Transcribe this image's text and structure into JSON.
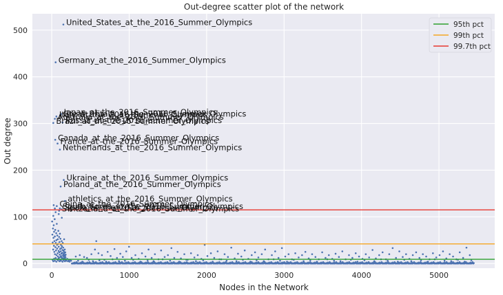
{
  "chart_data": {
    "type": "scatter",
    "title": "Out-degree scatter plot of the network",
    "xlabel": "Nodes in the Network",
    "ylabel": "Out degree",
    "xlim": [
      -250,
      5720
    ],
    "ylim": [
      -10,
      535
    ],
    "xticks": [
      0,
      1000,
      2000,
      3000,
      4000,
      5000
    ],
    "yticks": [
      0,
      100,
      200,
      300,
      400,
      500
    ],
    "grid": true,
    "legend_position": "top-right",
    "point_color": "#4c72b0",
    "reference_lines": [
      {
        "name": "95th pct",
        "y": 9,
        "color": "#2ca02c"
      },
      {
        "name": "99th pct",
        "y": 42,
        "color": "#f5a623"
      },
      {
        "name": "99.7th pct",
        "y": 115,
        "color": "#e8362e"
      }
    ],
    "labeled_points": [
      {
        "label": "United_States_at_the_2016_Summer_Olympics",
        "x": 150,
        "y": 512
      },
      {
        "label": "Germany_at_the_2016_Summer_Olympics",
        "x": 50,
        "y": 431
      },
      {
        "label": "Japan_at_the_2016_Summer_Olympics",
        "x": 120,
        "y": 320
      },
      {
        "label": "Great_Britain_at_the_2016_Summer_Olympics",
        "x": 110,
        "y": 316
      },
      {
        "label": "Italy_at_the_2016_Summer_Olympics",
        "x": 60,
        "y": 315
      },
      {
        "label": "Australia_at_the_2016_Summer_Olympics",
        "x": 40,
        "y": 310
      },
      {
        "label": "Russia_at_the_2016_Summer_Olympics",
        "x": 140,
        "y": 302
      },
      {
        "label": "Brazil_at_the_2016_Summer_Olympics",
        "x": 20,
        "y": 301
      },
      {
        "label": "Canada_at_the_2016_Summer_Olympics",
        "x": 45,
        "y": 265
      },
      {
        "label": "France_at_the_2016_Summer_Olympics",
        "x": 75,
        "y": 257
      },
      {
        "label": "Netherlands_at_the_2016_Summer_Olympics",
        "x": 105,
        "y": 244
      },
      {
        "label": "Ukraine_at_the_2016_Summer_Olympics",
        "x": 155,
        "y": 179
      },
      {
        "label": "Poland_at_the_2016_Summer_Olympics",
        "x": 115,
        "y": 165
      },
      {
        "label": "athletics_at_the_2016_Summer_Olympics",
        "x": 170,
        "y": 134
      },
      {
        "label": "China_at_the_2016_Summer_Olympics",
        "x": 65,
        "y": 123
      },
      {
        "label": "South_Korea_at_the_2016_Summer_Olympics",
        "x": 105,
        "y": 118
      },
      {
        "label": "Spain_at_the_2016_Summer_Olympics",
        "x": 130,
        "y": 116
      },
      {
        "label": "Switzerland_at_the_2016_Summer_Olympics",
        "x": 95,
        "y": 113
      }
    ],
    "points": [
      [
        5,
        90
      ],
      [
        8,
        62
      ],
      [
        12,
        45
      ],
      [
        15,
        75
      ],
      [
        18,
        30
      ],
      [
        20,
        102
      ],
      [
        22,
        55
      ],
      [
        25,
        82
      ],
      [
        28,
        38
      ],
      [
        30,
        68
      ],
      [
        33,
        25
      ],
      [
        35,
        48
      ],
      [
        38,
        95
      ],
      [
        40,
        58
      ],
      [
        42,
        20
      ],
      [
        45,
        72
      ],
      [
        48,
        35
      ],
      [
        50,
        110
      ],
      [
        52,
        44
      ],
      [
        55,
        28
      ],
      [
        58,
        65
      ],
      [
        60,
        50
      ],
      [
        62,
        18
      ],
      [
        65,
        85
      ],
      [
        68,
        40
      ],
      [
        70,
        32
      ],
      [
        72,
        60
      ],
      [
        75,
        22
      ],
      [
        78,
        52
      ],
      [
        80,
        15
      ],
      [
        82,
        42
      ],
      [
        85,
        70
      ],
      [
        88,
        27
      ],
      [
        90,
        36
      ],
      [
        92,
        12
      ],
      [
        95,
        57
      ],
      [
        98,
        24
      ],
      [
        100,
        46
      ],
      [
        102,
        19
      ],
      [
        105,
        64
      ],
      [
        108,
        31
      ],
      [
        110,
        14
      ],
      [
        112,
        53
      ],
      [
        115,
        26
      ],
      [
        118,
        40
      ],
      [
        120,
        16
      ],
      [
        122,
        33
      ],
      [
        125,
        21
      ],
      [
        128,
        48
      ],
      [
        130,
        13
      ],
      [
        132,
        37
      ],
      [
        135,
        23
      ],
      [
        138,
        29
      ],
      [
        140,
        11
      ],
      [
        142,
        44
      ],
      [
        145,
        17
      ],
      [
        148,
        34
      ],
      [
        150,
        20
      ],
      [
        152,
        28
      ],
      [
        155,
        15
      ],
      [
        158,
        25
      ],
      [
        160,
        12
      ],
      [
        162,
        22
      ],
      [
        165,
        18
      ],
      [
        168,
        30
      ],
      [
        170,
        10
      ],
      [
        172,
        16
      ],
      [
        175,
        24
      ],
      [
        178,
        13
      ],
      [
        180,
        19
      ],
      [
        10,
        8
      ],
      [
        20,
        5
      ],
      [
        30,
        10
      ],
      [
        40,
        6
      ],
      [
        50,
        12
      ],
      [
        60,
        4
      ],
      [
        70,
        9
      ],
      [
        80,
        7
      ],
      [
        90,
        11
      ],
      [
        100,
        5
      ],
      [
        110,
        8
      ],
      [
        120,
        6
      ],
      [
        130,
        10
      ],
      [
        140,
        4
      ],
      [
        150,
        7
      ],
      [
        160,
        9
      ],
      [
        170,
        5
      ],
      [
        180,
        8
      ],
      [
        190,
        6
      ],
      [
        200,
        10
      ],
      [
        210,
        5
      ],
      [
        220,
        7
      ],
      [
        230,
        4
      ],
      [
        240,
        8
      ],
      [
        250,
        6
      ],
      [
        40,
        118
      ],
      [
        90,
        106
      ],
      [
        130,
        98
      ],
      [
        25,
        125
      ],
      [
        160,
        52
      ],
      [
        310,
        15
      ],
      [
        362,
        18
      ],
      [
        418,
        14
      ],
      [
        455,
        12
      ],
      [
        512,
        20
      ],
      [
        558,
        30
      ],
      [
        575,
        48
      ],
      [
        603,
        22
      ],
      [
        648,
        18
      ],
      [
        680,
        8
      ],
      [
        722,
        25
      ],
      [
        760,
        16
      ],
      [
        810,
        31
      ],
      [
        842,
        12
      ],
      [
        885,
        21
      ],
      [
        918,
        14
      ],
      [
        962,
        26
      ],
      [
        998,
        36
      ],
      [
        1032,
        12
      ],
      [
        1080,
        18
      ],
      [
        1122,
        10
      ],
      [
        1165,
        22
      ],
      [
        1210,
        15
      ],
      [
        1250,
        30
      ],
      [
        1290,
        12
      ],
      [
        1332,
        20
      ],
      [
        1378,
        9
      ],
      [
        1412,
        28
      ],
      [
        1458,
        14
      ],
      [
        1500,
        18
      ],
      [
        1545,
        33
      ],
      [
        1582,
        12
      ],
      [
        1625,
        25
      ],
      [
        1668,
        11
      ],
      [
        1712,
        20
      ],
      [
        1755,
        8
      ],
      [
        1798,
        22
      ],
      [
        1842,
        13
      ],
      [
        1885,
        18
      ],
      [
        1932,
        10
      ],
      [
        1975,
        40
      ],
      [
        2010,
        16
      ],
      [
        2055,
        22
      ],
      [
        2098,
        12
      ],
      [
        2142,
        26
      ],
      [
        2188,
        9
      ],
      [
        2232,
        20
      ],
      [
        2275,
        14
      ],
      [
        2318,
        34
      ],
      [
        2362,
        11
      ],
      [
        2405,
        21
      ],
      [
        2448,
        15
      ],
      [
        2492,
        28
      ],
      [
        2538,
        10
      ],
      [
        2582,
        18
      ],
      [
        2625,
        24
      ],
      [
        2668,
        13
      ],
      [
        2712,
        20
      ],
      [
        2755,
        30
      ],
      [
        2798,
        9
      ],
      [
        2842,
        18
      ],
      [
        2885,
        26
      ],
      [
        2928,
        12
      ],
      [
        2972,
        33
      ],
      [
        3015,
        15
      ],
      [
        3058,
        20
      ],
      [
        3102,
        9
      ],
      [
        3145,
        22
      ],
      [
        3188,
        13
      ],
      [
        3232,
        18
      ],
      [
        3275,
        25
      ],
      [
        3318,
        11
      ],
      [
        3362,
        20
      ],
      [
        3405,
        14
      ],
      [
        3448,
        9
      ],
      [
        3492,
        24
      ],
      [
        3535,
        12
      ],
      [
        3578,
        18
      ],
      [
        3622,
        10
      ],
      [
        3665,
        21
      ],
      [
        3708,
        14
      ],
      [
        3752,
        26
      ],
      [
        3795,
        9
      ],
      [
        3838,
        18
      ],
      [
        3882,
        12
      ],
      [
        3925,
        22
      ],
      [
        3968,
        15
      ],
      [
        4012,
        10
      ],
      [
        4055,
        20
      ],
      [
        4098,
        13
      ],
      [
        4142,
        29
      ],
      [
        4185,
        11
      ],
      [
        4228,
        18
      ],
      [
        4272,
        24
      ],
      [
        4315,
        9
      ],
      [
        4358,
        20
      ],
      [
        4402,
        33
      ],
      [
        4445,
        12
      ],
      [
        4488,
        26
      ],
      [
        4532,
        14
      ],
      [
        4575,
        20
      ],
      [
        4618,
        10
      ],
      [
        4662,
        18
      ],
      [
        4705,
        24
      ],
      [
        4748,
        12
      ],
      [
        4792,
        20
      ],
      [
        4835,
        15
      ],
      [
        4878,
        9
      ],
      [
        4922,
        22
      ],
      [
        4965,
        13
      ],
      [
        5008,
        18
      ],
      [
        5052,
        26
      ],
      [
        5095,
        11
      ],
      [
        5138,
        20
      ],
      [
        5182,
        15
      ],
      [
        5225,
        9
      ],
      [
        5268,
        24
      ],
      [
        5312,
        12
      ],
      [
        5355,
        34
      ],
      [
        5398,
        18
      ],
      [
        340,
        6
      ],
      [
        395,
        4
      ],
      [
        478,
        8
      ],
      [
        532,
        5
      ],
      [
        615,
        7
      ],
      [
        702,
        4
      ],
      [
        785,
        9
      ],
      [
        868,
        5
      ],
      [
        945,
        6
      ],
      [
        1052,
        8
      ],
      [
        1145,
        4
      ],
      [
        1238,
        7
      ],
      [
        1315,
        5
      ],
      [
        1432,
        9
      ],
      [
        1528,
        6
      ],
      [
        1645,
        4
      ],
      [
        1738,
        8
      ],
      [
        1862,
        5
      ],
      [
        1955,
        7
      ],
      [
        2078,
        4
      ],
      [
        2165,
        9
      ],
      [
        2258,
        6
      ],
      [
        2385,
        5
      ],
      [
        2468,
        8
      ],
      [
        2565,
        4
      ],
      [
        2645,
        7
      ],
      [
        2738,
        5
      ],
      [
        2865,
        9
      ],
      [
        2948,
        6
      ],
      [
        3038,
        4
      ],
      [
        3125,
        8
      ],
      [
        3252,
        5
      ],
      [
        3338,
        7
      ],
      [
        3425,
        4
      ],
      [
        3558,
        9
      ],
      [
        3645,
        6
      ],
      [
        3728,
        5
      ],
      [
        3862,
        8
      ],
      [
        3948,
        4
      ],
      [
        4038,
        7
      ],
      [
        4165,
        5
      ],
      [
        4252,
        9
      ],
      [
        4338,
        6
      ],
      [
        4468,
        4
      ],
      [
        4552,
        8
      ],
      [
        4642,
        5
      ],
      [
        4768,
        7
      ],
      [
        4858,
        4
      ],
      [
        4945,
        9
      ],
      [
        5072,
        6
      ],
      [
        5158,
        5
      ],
      [
        5245,
        8
      ],
      [
        5332,
        4
      ],
      [
        5418,
        7
      ]
    ],
    "baseline_points": {
      "x_start": 260,
      "x_end": 5450,
      "count": 620,
      "y_values": [
        0,
        0,
        1,
        0,
        2,
        0,
        1,
        3,
        0,
        1
      ]
    }
  }
}
